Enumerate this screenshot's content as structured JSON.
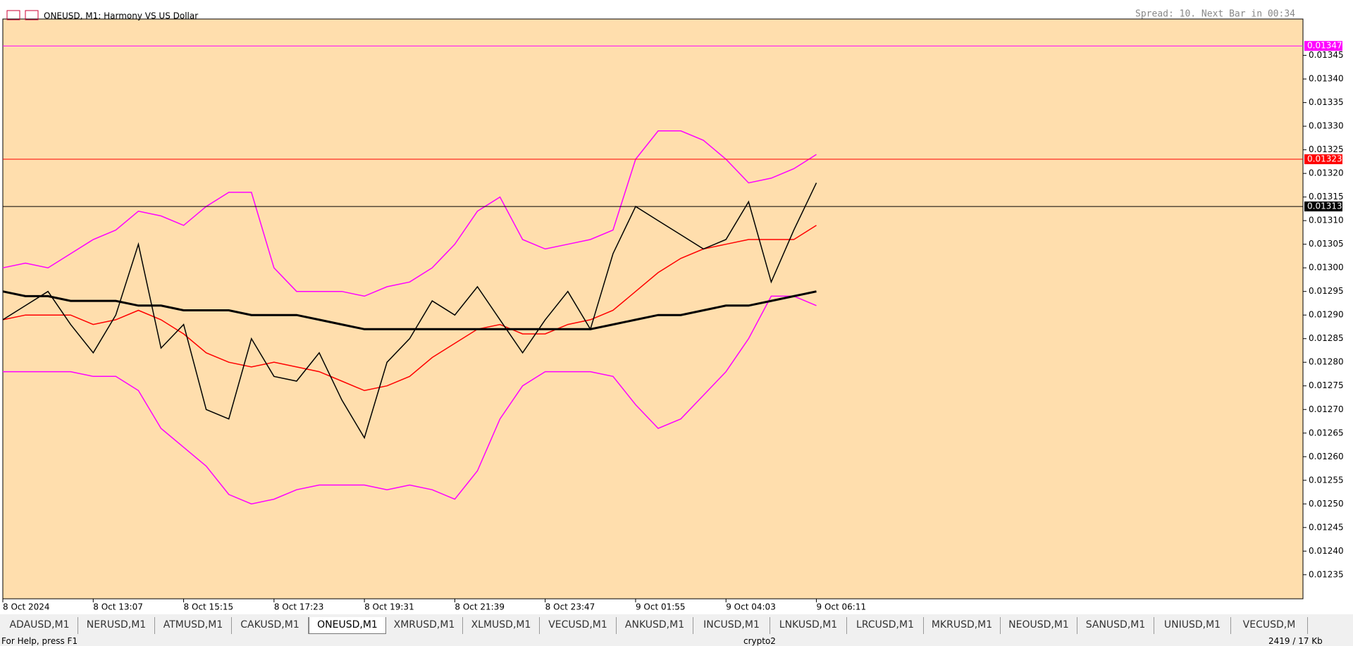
{
  "header": {
    "symbol": "ONEUSD, M1:  Harmony VS US Dollar",
    "spread": "Spread: 10. Next Bar in 00:34"
  },
  "chart_data": {
    "type": "line",
    "categories": [
      "8 Oct 2024",
      null,
      null,
      null,
      "8 Oct 13:07",
      null,
      null,
      null,
      "8 Oct 15:15",
      null,
      null,
      null,
      "8 Oct 17:23",
      null,
      null,
      null,
      "8 Oct 19:31",
      null,
      null,
      null,
      "8 Oct 21:39",
      null,
      null,
      null,
      "8 Oct 23:47",
      null,
      null,
      null,
      "9 Oct 01:55",
      null,
      null,
      null,
      "9 Oct 04:03",
      null,
      null,
      null,
      "9 Oct 06:11"
    ],
    "series": [
      {
        "color": "#ff00ff",
        "values": [
          0.013,
          0.01301,
          0.013,
          0.01303,
          0.01306,
          0.01308,
          0.01312,
          0.01311,
          0.01309,
          0.01313,
          0.01316,
          0.01316,
          0.013,
          0.01295,
          0.01295,
          0.01295,
          0.01294,
          0.01296,
          0.01297,
          0.013,
          0.01305,
          0.01312,
          0.01315,
          0.01306,
          0.01304,
          0.01305,
          0.01306,
          0.01308,
          0.01323,
          0.01329,
          0.01329,
          0.01327,
          0.01323,
          0.01318,
          0.01319,
          0.01321,
          0.01324
        ]
      },
      {
        "color": "#ff00ff",
        "values": [
          0.01278,
          0.01278,
          0.01278,
          0.01278,
          0.01277,
          0.01277,
          0.01274,
          0.01266,
          0.01262,
          0.01258,
          0.01252,
          0.0125,
          0.01251,
          0.01253,
          0.01254,
          0.01254,
          0.01254,
          0.01253,
          0.01254,
          0.01253,
          0.01251,
          0.01257,
          0.01268,
          0.01275,
          0.01278,
          0.01278,
          0.01278,
          0.01277,
          0.01271,
          0.01266,
          0.01268,
          0.01273,
          0.01278,
          0.01285,
          0.01294,
          0.01294,
          0.01292
        ]
      },
      {
        "color": "#ff0000",
        "values": [
          0.01289,
          0.0129,
          0.0129,
          0.0129,
          0.01288,
          0.01289,
          0.01291,
          0.01289,
          0.01286,
          0.01282,
          0.0128,
          0.01279,
          0.0128,
          0.01279,
          0.01278,
          0.01276,
          0.01274,
          0.01275,
          0.01277,
          0.01281,
          0.01284,
          0.01287,
          0.01288,
          0.01286,
          0.01286,
          0.01288,
          0.01289,
          0.01291,
          0.01295,
          0.01299,
          0.01302,
          0.01304,
          0.01305,
          0.01306,
          0.01306,
          0.01306,
          0.01309
        ]
      },
      {
        "color": "#000000",
        "values": [
          0.01295,
          0.01294,
          0.01294,
          0.01293,
          0.01293,
          0.01293,
          0.01292,
          0.01292,
          0.01291,
          0.01291,
          0.01291,
          0.0129,
          0.0129,
          0.0129,
          0.01289,
          0.01288,
          0.01287,
          0.01287,
          0.01287,
          0.01287,
          0.01287,
          0.01287,
          0.01287,
          0.01287,
          0.01287,
          0.01287,
          0.01287,
          0.01288,
          0.01289,
          0.0129,
          0.0129,
          0.01291,
          0.01292,
          0.01292,
          0.01293,
          0.01294,
          0.01295
        ]
      },
      {
        "color": "#000000",
        "values": [
          0.01289,
          0.01292,
          0.01295,
          0.01288,
          0.01282,
          0.0129,
          0.01305,
          0.01283,
          0.01288,
          0.0127,
          0.01268,
          0.01285,
          0.01277,
          0.01276,
          0.01282,
          0.01272,
          0.01264,
          0.0128,
          0.01285,
          0.01293,
          0.0129,
          0.01296,
          0.01289,
          0.01282,
          0.01289,
          0.01295,
          0.01287,
          0.01303,
          0.01313,
          0.0131,
          0.01307,
          0.01304,
          0.01306,
          0.01314,
          0.01297,
          0.01308,
          0.01318
        ]
      }
    ],
    "ylim": [
      0.012299,
      0.013527
    ],
    "yticks": [
      0.01345,
      {
        "value": 0.0134,
        "label": "0.01340"
      },
      0.01335,
      {
        "value": 0.0133,
        "label": "0.01330"
      },
      0.01325,
      {
        "value": 0.0132,
        "label": "0.01320"
      },
      0.01315,
      {
        "value": 0.0131,
        "label": "0.01310"
      },
      0.01305,
      {
        "value": 0.013,
        "label": "0.01300"
      },
      0.01295,
      {
        "value": 0.0129,
        "label": "0.01290"
      },
      0.01285,
      {
        "value": 0.0128,
        "label": "0.01280"
      },
      0.01275,
      {
        "value": 0.0127,
        "label": "0.01270"
      },
      0.01265,
      {
        "value": 0.0126,
        "label": "0.01260"
      },
      0.01255,
      {
        "value": 0.0125,
        "label": "0.01250"
      },
      0.01245,
      {
        "value": 0.0124,
        "label": "0.01240"
      },
      0.01235
    ],
    "levels": [
      {
        "value": 0.01347,
        "color": "#ff00ff"
      },
      {
        "value": 0.01323,
        "color": "#ff0000"
      },
      {
        "value": 0.01313,
        "color": "#000000"
      }
    ]
  },
  "tabs": [
    "ADAUSD,M1",
    "NERUSD,M1",
    "ATMUSD,M1",
    "CAKUSD,M1",
    "ONEUSD,M1",
    "XMRUSD,M1",
    "XLMUSD,M1",
    "VECUSD,M1",
    "ANKUSD,M1",
    "INCUSD,M1",
    "LNKUSD,M1",
    "LRCUSD,M1",
    "MKRUSD,M1",
    "NEOUSD,M1",
    "SANUSD,M1",
    "UNIUSD,M1",
    "VECUSD,M"
  ],
  "status": {
    "help": "For Help, press F1",
    "profile": "crypto2",
    "traffic": "2419 / 17 Kb"
  }
}
